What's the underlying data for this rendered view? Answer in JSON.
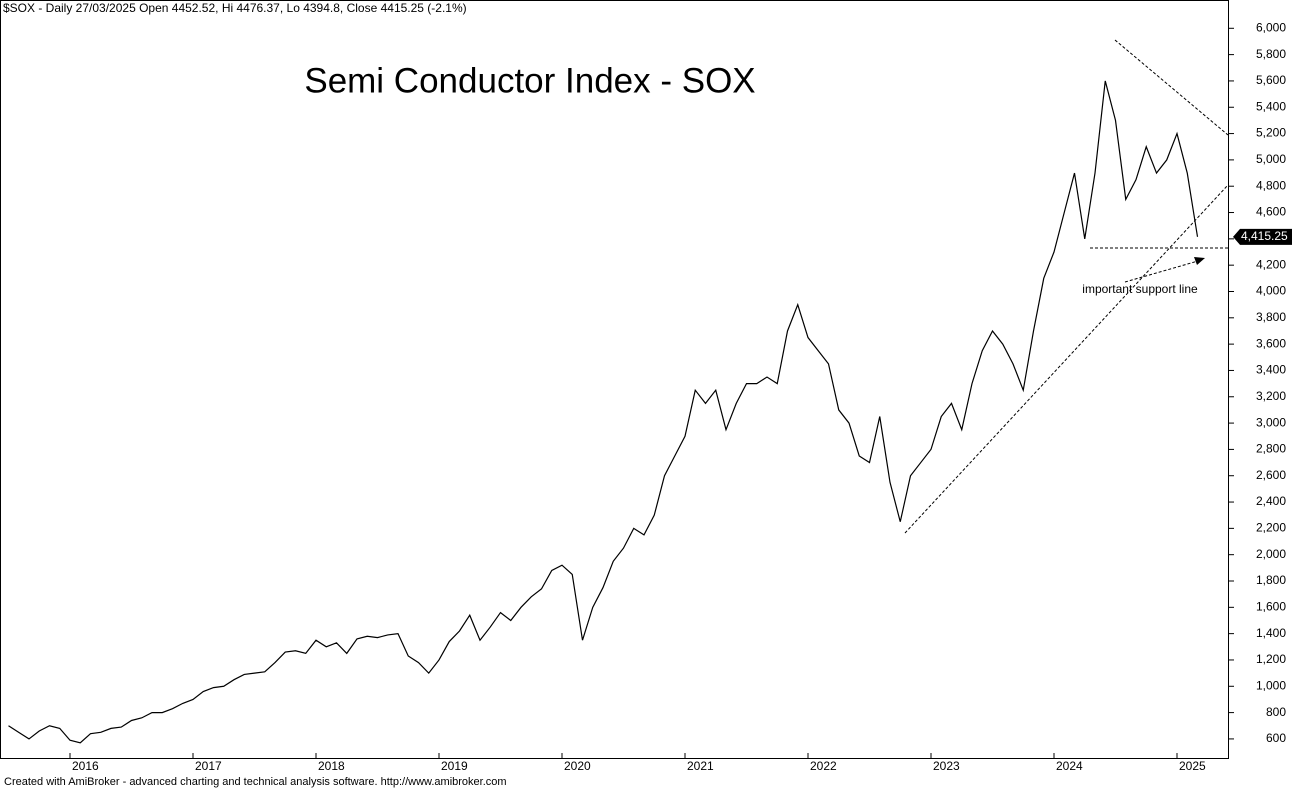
{
  "chart_data": {
    "type": "line",
    "header": "$SOX - Daily 27/03/2025 Open 4452.52, Hi 4476.37, Lo 4394.8, Close 4415.25 (-2.1%)",
    "title": "Semi Conductor Index - SOX",
    "annotation": "important support line",
    "footer": "Created with AmiBroker - advanced charting and technical analysis software. http://www.amibroker.com",
    "last_label": {
      "value": 4415.25,
      "label": "4,415.25"
    },
    "categories": [
      null,
      null,
      null,
      null,
      null,
      null,
      "2016",
      null,
      null,
      null,
      null,
      null,
      null,
      null,
      null,
      null,
      null,
      null,
      "2017",
      null,
      null,
      null,
      null,
      null,
      null,
      null,
      null,
      null,
      null,
      null,
      "2018",
      null,
      null,
      null,
      null,
      null,
      null,
      null,
      null,
      null,
      null,
      null,
      "2019",
      null,
      null,
      null,
      null,
      null,
      null,
      null,
      null,
      null,
      null,
      null,
      "2020",
      null,
      null,
      null,
      null,
      null,
      null,
      null,
      null,
      null,
      null,
      null,
      "2021",
      null,
      null,
      null,
      null,
      null,
      null,
      null,
      null,
      null,
      null,
      null,
      "2022",
      null,
      null,
      null,
      null,
      null,
      null,
      null,
      null,
      null,
      null,
      null,
      "2023",
      null,
      null,
      null,
      null,
      null,
      null,
      null,
      null,
      null,
      null,
      null,
      "2024",
      null,
      null,
      null,
      null,
      null,
      null,
      null,
      null,
      null,
      null,
      null,
      "2025",
      null,
      null
    ],
    "series": [
      {
        "name": "$SOX",
        "color": "#000000",
        "values": [
          700,
          650,
          600,
          660,
          700,
          680,
          590,
          570,
          640,
          650,
          680,
          690,
          740,
          760,
          800,
          800,
          830,
          870,
          900,
          960,
          990,
          1000,
          1050,
          1090,
          1100,
          1110,
          1180,
          1260,
          1270,
          1250,
          1350,
          1300,
          1330,
          1250,
          1360,
          1380,
          1370,
          1390,
          1400,
          1230,
          1180,
          1100,
          1200,
          1340,
          1420,
          1540,
          1350,
          1450,
          1560,
          1500,
          1600,
          1680,
          1740,
          1880,
          1920,
          1850,
          1350,
          1600,
          1750,
          1950,
          2050,
          2200,
          2150,
          2300,
          2600,
          2750,
          2900,
          3250,
          3150,
          3250,
          2950,
          3150,
          3300,
          3300,
          3350,
          3300,
          3700,
          3900,
          3650,
          3550,
          3450,
          3100,
          3000,
          2750,
          2700,
          3050,
          2550,
          2250,
          2600,
          2700,
          2800,
          3050,
          3150,
          2950,
          3300,
          3550,
          3700,
          3600,
          3450,
          3250,
          3700,
          4100,
          4300,
          4600,
          4900,
          4400,
          4900,
          5600,
          5300,
          4700,
          4850,
          5100,
          4900,
          5000,
          5200,
          4900,
          4415.25
        ]
      }
    ],
    "ylim": [
      455,
      6215
    ],
    "yticks": [
      600,
      800,
      {
        "value": 1000,
        "label": "1,000"
      },
      {
        "value": 1200,
        "label": "1,200"
      },
      {
        "value": 1400,
        "label": "1,400"
      },
      {
        "value": 1600,
        "label": "1,600"
      },
      {
        "value": 1800,
        "label": "1,800"
      },
      {
        "value": 2000,
        "label": "2,000"
      },
      {
        "value": 2200,
        "label": "2,200"
      },
      {
        "value": 2400,
        "label": "2,400"
      },
      {
        "value": 2600,
        "label": "2,600"
      },
      {
        "value": 2800,
        "label": "2,800"
      },
      {
        "value": 3000,
        "label": "3,000"
      },
      {
        "value": 3200,
        "label": "3,200"
      },
      {
        "value": 3400,
        "label": "3,400"
      },
      {
        "value": 3600,
        "label": "3,600"
      },
      {
        "value": 3800,
        "label": "3,800"
      },
      {
        "value": 4000,
        "label": "4,000"
      },
      {
        "value": 4200,
        "label": "4,200"
      },
      {
        "value": 4400,
        "label": "4,400"
      },
      {
        "value": 4600,
        "label": "4,600"
      },
      {
        "value": 4800,
        "label": "4,800"
      },
      {
        "value": 5000,
        "label": "5,000"
      },
      {
        "value": 5200,
        "label": "5,200"
      },
      {
        "value": 5400,
        "label": "5,400"
      },
      {
        "value": 5600,
        "label": "5,600"
      },
      {
        "value": 5800,
        "label": "5,800"
      },
      {
        "value": 6000,
        "label": "6,000"
      }
    ],
    "grid": false
  }
}
